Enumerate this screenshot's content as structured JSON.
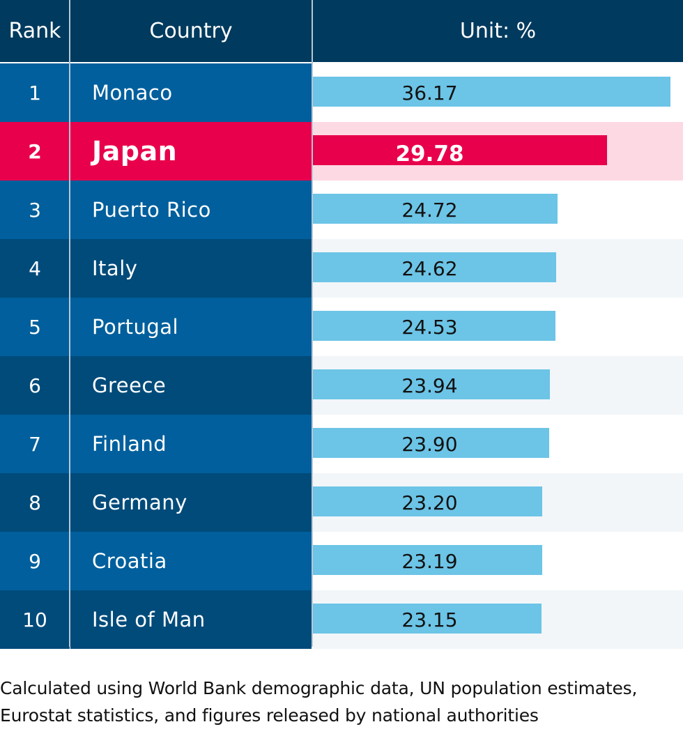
{
  "header": {
    "rank": "Rank",
    "country": "Country",
    "unit": "Unit: %"
  },
  "colors": {
    "header_bg": "#003a5e",
    "row_dark": "#004b7a",
    "row_light": "#005f9c",
    "highlight": "#e8004c",
    "highlight_bg": "#fdd9e3",
    "bar": "#6cc4e6",
    "stripe": "#f2f6f9"
  },
  "chart_data": {
    "type": "bar",
    "orientation": "horizontal",
    "categories": [
      "Monaco",
      "Japan",
      "Puerto Rico",
      "Italy",
      "Portugal",
      "Greece",
      "Finland",
      "Germany",
      "Croatia",
      "Isle of Man"
    ],
    "ranks": [
      "1",
      "2",
      "3",
      "4",
      "5",
      "6",
      "7",
      "8",
      "9",
      "10"
    ],
    "values": [
      36.17,
      29.78,
      24.72,
      24.62,
      24.53,
      23.94,
      23.9,
      23.2,
      23.19,
      23.15
    ],
    "labels": [
      "36.17",
      "29.78",
      "24.72",
      "24.62",
      "24.53",
      "23.94",
      "23.90",
      "23.20",
      "23.19",
      "23.15"
    ],
    "highlighted": "Japan",
    "unit": "%"
  },
  "footnote": {
    "line1": "Calculated using World Bank demographic data, UN population estimates,",
    "line2": "Eurostat statistics, and figures released by national authorities"
  }
}
